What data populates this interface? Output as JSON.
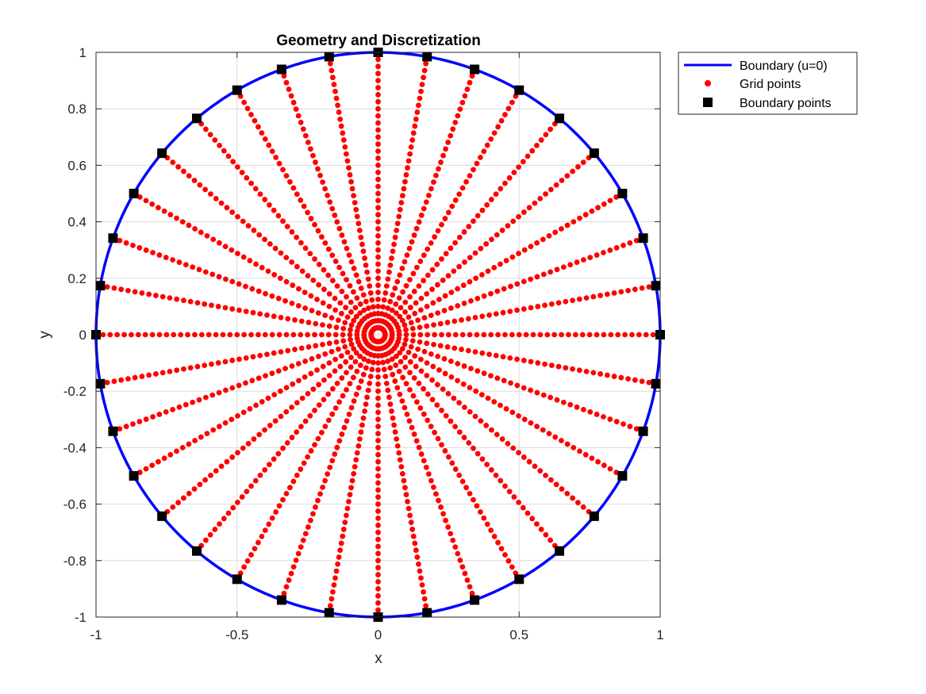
{
  "chart_data": {
    "type": "scatter",
    "title": "Geometry and Discretization",
    "xlabel": "x",
    "ylabel": "y",
    "xlim": [
      -1,
      1
    ],
    "ylim": [
      -1,
      1
    ],
    "xticks": [
      -1,
      -0.5,
      0,
      0.5,
      1
    ],
    "xtick_labels": [
      "-1",
      "-0.5",
      "0",
      "0.5",
      "1"
    ],
    "yticks": [
      -1,
      -0.8,
      -0.6,
      -0.4,
      -0.2,
      0,
      0.2,
      0.4,
      0.6,
      0.8,
      1
    ],
    "ytick_labels": [
      "-1",
      "-0.8",
      "-0.6",
      "-0.4",
      "-0.2",
      "0",
      "0.2",
      "0.4",
      "0.6",
      "0.8",
      "1"
    ],
    "grid": true,
    "legend_position": "outside-top-right",
    "series": [
      {
        "name": "Boundary (u=0)",
        "kind": "line",
        "color": "#0000ff",
        "shape": "circle",
        "center": [
          0,
          0
        ],
        "radius": 1
      },
      {
        "name": "Grid points",
        "kind": "points",
        "color": "#ff0000",
        "marker": "dot",
        "layout": "polar",
        "num_angles": 36,
        "radius_step": 0.025,
        "radius_min": 0.025,
        "radius_max": 0.975
      },
      {
        "name": "Boundary points",
        "kind": "points",
        "color": "#000000",
        "marker": "square",
        "layout": "polar",
        "num_angles": 36,
        "radius": 1
      }
    ]
  }
}
